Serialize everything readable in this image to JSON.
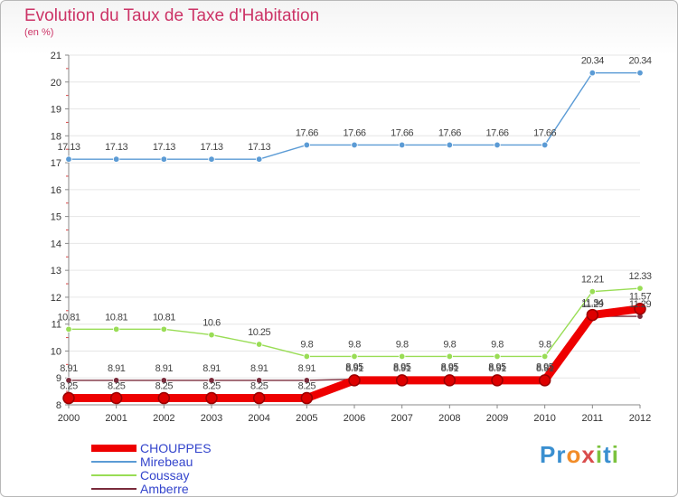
{
  "header": {
    "title": "Evolution du Taux de Taxe d'Habitation",
    "unit": "(en %)"
  },
  "brand": {
    "letters": [
      "P",
      "r",
      "o",
      "x",
      "i",
      "t",
      "i"
    ],
    "colors": [
      "#3a8fd0",
      "#3a8fd0",
      "#f28c28",
      "#d94c4c",
      "#7cc23e",
      "#3a8fd0",
      "#7cc23e"
    ]
  },
  "chart_data": {
    "type": "line",
    "title": "Evolution du Taux de Taxe d'Habitation",
    "ylabel": "(en %)",
    "xlabel": "",
    "ylim": [
      8,
      21
    ],
    "yticks": [
      "8",
      "9",
      "10",
      "11",
      "12",
      "13",
      "14",
      "15",
      "16",
      "17",
      "18",
      "19",
      "20",
      "21"
    ],
    "categories": [
      "2000",
      "2001",
      "2002",
      "2003",
      "2004",
      "2005",
      "2006",
      "2007",
      "2008",
      "2009",
      "2010",
      "2011",
      "2012"
    ],
    "series": [
      {
        "name": "CHOUPPES",
        "color": "#ee0000",
        "bold": true,
        "values": [
          8.25,
          8.25,
          8.25,
          8.25,
          8.25,
          8.25,
          8.91,
          8.91,
          8.91,
          8.91,
          8.91,
          11.34,
          11.57
        ],
        "labels": [
          "8.25",
          "8.25",
          "8.25",
          "8.25",
          "8.25",
          "8.25",
          "8.91",
          "8.91",
          "8.91",
          "8.91",
          "8.91",
          "11.34",
          "11.57"
        ]
      },
      {
        "name": "Mirebeau",
        "color": "#5b9bd5",
        "values": [
          17.13,
          17.13,
          17.13,
          17.13,
          17.13,
          17.66,
          17.66,
          17.66,
          17.66,
          17.66,
          17.66,
          20.34,
          20.34
        ],
        "labels": [
          "17.13",
          "17.13",
          "17.13",
          "17.13",
          "17.13",
          "17.66",
          "17.66",
          "17.66",
          "17.66",
          "17.66",
          "17.66",
          "20.34",
          "20.34"
        ]
      },
      {
        "name": "Coussay",
        "color": "#99dd55",
        "values": [
          10.81,
          10.81,
          10.81,
          10.6,
          10.25,
          9.8,
          9.8,
          9.8,
          9.8,
          9.8,
          9.8,
          12.21,
          12.33
        ],
        "labels": [
          "10.81",
          "10.81",
          "10.81",
          "10.6",
          "10.25",
          "9.8",
          "9.8",
          "9.8",
          "9.8",
          "9.8",
          "9.8",
          "12.21",
          "12.33"
        ]
      },
      {
        "name": "Amberre",
        "color": "#7a2b3b",
        "values": [
          8.91,
          8.91,
          8.91,
          8.91,
          8.91,
          8.91,
          8.95,
          8.95,
          8.95,
          8.95,
          8.95,
          11.29,
          11.29
        ],
        "labels": [
          "8.91",
          "8.91",
          "8.91",
          "8.91",
          "8.91",
          "8.91",
          "8.95",
          "8.95",
          "8.95",
          "8.95",
          "8.95",
          "11.29",
          "11.29"
        ]
      }
    ]
  }
}
